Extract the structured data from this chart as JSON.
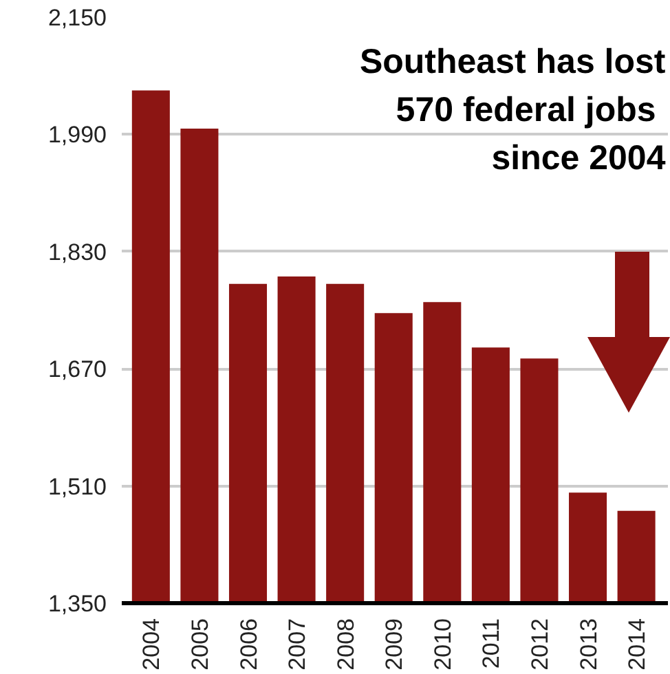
{
  "chart_data": {
    "type": "bar",
    "categories": [
      "2004",
      "2005",
      "2006",
      "2007",
      "2008",
      "2009",
      "2010",
      "2011",
      "2012",
      "2013",
      "2014"
    ],
    "values": [
      2050,
      1998,
      1786,
      1796,
      1786,
      1746,
      1761,
      1699,
      1684,
      1501,
      1476
    ],
    "color": "#8c1513",
    "ylim": [
      1350,
      2150
    ],
    "yticks": [
      {
        "value": 1350,
        "label": "1,350"
      },
      {
        "value": 1510,
        "label": "1,510"
      },
      {
        "value": 1670,
        "label": "1,670"
      },
      {
        "value": 1830,
        "label": "1,830"
      },
      {
        "value": 1990,
        "label": "1,990"
      },
      {
        "value": 2150,
        "label": "2,150"
      }
    ],
    "grid": "y",
    "annotations": [
      "Southeast has lost\n570 federal  jobs\nsince 2004"
    ]
  }
}
